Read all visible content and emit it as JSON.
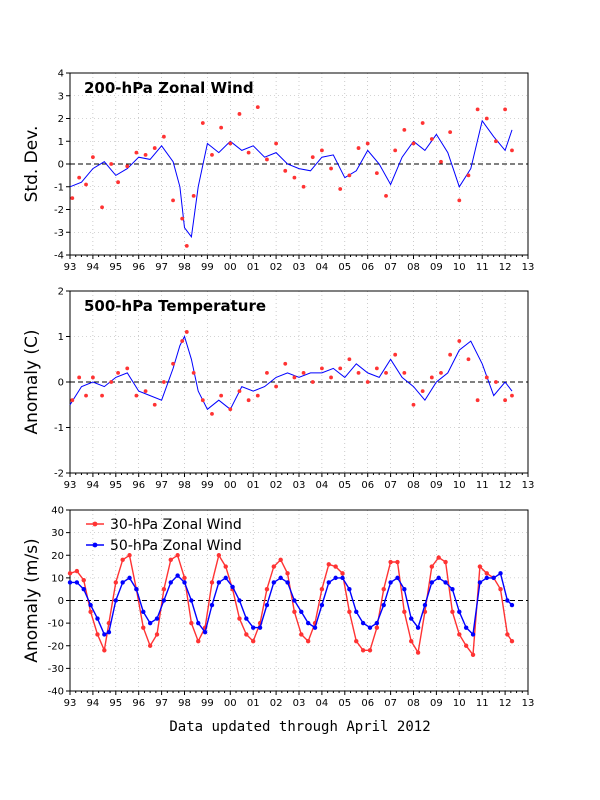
{
  "footer": "Data updated through April 2012",
  "chart_data": [
    {
      "type": "line",
      "title": "200-hPa Zonal Wind",
      "ylabel": "Std. Dev.",
      "xlabel": "",
      "x_tick_labels": [
        "93",
        "94",
        "95",
        "96",
        "97",
        "98",
        "99",
        "00",
        "01",
        "02",
        "03",
        "04",
        "05",
        "06",
        "07",
        "08",
        "09",
        "10",
        "11",
        "12",
        "13"
      ],
      "xlim": [
        1993,
        2013
      ],
      "ylim": [
        -4,
        4
      ],
      "y_ticks": [
        -4,
        -3,
        -2,
        -1,
        0,
        1,
        2,
        3,
        4
      ],
      "grid": true,
      "zero_line": true,
      "series": [
        {
          "color": "#0000ff",
          "style": "line",
          "x": [
            1993.0,
            1993.5,
            1994.0,
            1994.5,
            1995.0,
            1995.5,
            1996.0,
            1996.5,
            1997.0,
            1997.5,
            1997.8,
            1998.0,
            1998.3,
            1998.6,
            1999.0,
            1999.5,
            2000.0,
            2000.5,
            2001.0,
            2001.5,
            2002.0,
            2002.5,
            2003.0,
            2003.5,
            2004.0,
            2004.5,
            2005.0,
            2005.5,
            2006.0,
            2006.5,
            2007.0,
            2007.5,
            2008.0,
            2008.5,
            2009.0,
            2009.5,
            2010.0,
            2010.5,
            2011.0,
            2011.5,
            2012.0,
            2012.3
          ],
          "y": [
            -1.0,
            -0.8,
            -0.2,
            0.1,
            -0.5,
            -0.2,
            0.3,
            0.2,
            0.8,
            0.1,
            -1.0,
            -2.8,
            -3.2,
            -1.0,
            0.9,
            0.5,
            1.0,
            0.6,
            0.8,
            0.3,
            0.5,
            0.0,
            -0.2,
            -0.3,
            0.3,
            0.4,
            -0.6,
            -0.3,
            0.6,
            0.0,
            -0.9,
            0.3,
            1.0,
            0.6,
            1.3,
            0.5,
            -1.0,
            -0.2,
            1.9,
            1.2,
            0.6,
            1.5
          ]
        },
        {
          "color": "#ff3333",
          "style": "points",
          "x": [
            1993.1,
            1993.4,
            1993.7,
            1994.0,
            1994.4,
            1994.8,
            1995.1,
            1995.5,
            1995.9,
            1996.3,
            1996.7,
            1997.1,
            1997.5,
            1997.9,
            1998.1,
            1998.4,
            1998.8,
            1999.2,
            1999.6,
            2000.0,
            2000.4,
            2000.8,
            2001.2,
            2001.6,
            2002.0,
            2002.4,
            2002.8,
            2003.2,
            2003.6,
            2004.0,
            2004.4,
            2004.8,
            2005.2,
            2005.6,
            2006.0,
            2006.4,
            2006.8,
            2007.2,
            2007.6,
            2008.0,
            2008.4,
            2008.8,
            2009.2,
            2009.6,
            2010.0,
            2010.4,
            2010.8,
            2011.2,
            2011.6,
            2012.0,
            2012.3
          ],
          "y": [
            -1.5,
            -0.6,
            -0.9,
            0.3,
            -1.9,
            0.0,
            -0.8,
            -0.1,
            0.5,
            0.4,
            0.7,
            1.2,
            -1.6,
            -2.4,
            -3.6,
            -1.4,
            1.8,
            0.4,
            1.6,
            0.9,
            2.2,
            0.5,
            2.5,
            0.2,
            0.9,
            -0.3,
            -0.6,
            -1.0,
            0.3,
            0.6,
            -0.2,
            -1.1,
            -0.5,
            0.7,
            0.9,
            -0.4,
            -1.4,
            0.6,
            1.5,
            0.9,
            1.8,
            1.1,
            0.1,
            1.4,
            -1.6,
            -0.5,
            2.4,
            2.0,
            1.0,
            2.4,
            0.6
          ]
        }
      ]
    },
    {
      "type": "line",
      "title": "500-hPa Temperature",
      "ylabel": "Anomaly (C)",
      "xlabel": "",
      "x_tick_labels": [
        "93",
        "94",
        "95",
        "96",
        "97",
        "98",
        "99",
        "00",
        "01",
        "02",
        "03",
        "04",
        "05",
        "06",
        "07",
        "08",
        "09",
        "10",
        "11",
        "12",
        "13"
      ],
      "xlim": [
        1993,
        2013
      ],
      "ylim": [
        -2,
        2
      ],
      "y_ticks": [
        -2,
        -1,
        0,
        1,
        2
      ],
      "grid": true,
      "zero_line": true,
      "series": [
        {
          "color": "#0000ff",
          "style": "line",
          "x": [
            1993.0,
            1993.5,
            1994.0,
            1994.5,
            1995.0,
            1995.5,
            1996.0,
            1996.5,
            1997.0,
            1997.5,
            1997.8,
            1998.0,
            1998.3,
            1998.6,
            1999.0,
            1999.5,
            2000.0,
            2000.5,
            2001.0,
            2001.5,
            2002.0,
            2002.5,
            2003.0,
            2003.5,
            2004.0,
            2004.5,
            2005.0,
            2005.5,
            2006.0,
            2006.5,
            2007.0,
            2007.5,
            2008.0,
            2008.5,
            2009.0,
            2009.5,
            2010.0,
            2010.5,
            2011.0,
            2011.5,
            2012.0,
            2012.3
          ],
          "y": [
            -0.5,
            -0.1,
            0.0,
            -0.1,
            0.1,
            0.2,
            -0.2,
            -0.3,
            -0.4,
            0.3,
            0.8,
            1.0,
            0.5,
            -0.2,
            -0.6,
            -0.4,
            -0.6,
            -0.1,
            -0.2,
            -0.1,
            0.1,
            0.2,
            0.1,
            0.2,
            0.2,
            0.3,
            0.1,
            0.4,
            0.2,
            0.1,
            0.5,
            0.1,
            -0.1,
            -0.4,
            0.0,
            0.2,
            0.7,
            0.9,
            0.4,
            -0.3,
            0.0,
            -0.2
          ]
        },
        {
          "color": "#ff3333",
          "style": "points",
          "x": [
            1993.1,
            1993.4,
            1993.7,
            1994.0,
            1994.4,
            1994.8,
            1995.1,
            1995.5,
            1995.9,
            1996.3,
            1996.7,
            1997.1,
            1997.5,
            1997.9,
            1998.1,
            1998.4,
            1998.8,
            1999.2,
            1999.6,
            2000.0,
            2000.4,
            2000.8,
            2001.2,
            2001.6,
            2002.0,
            2002.4,
            2002.8,
            2003.2,
            2003.6,
            2004.0,
            2004.4,
            2004.8,
            2005.2,
            2005.6,
            2006.0,
            2006.4,
            2006.8,
            2007.2,
            2007.6,
            2008.0,
            2008.4,
            2008.8,
            2009.2,
            2009.6,
            2010.0,
            2010.4,
            2010.8,
            2011.2,
            2011.6,
            2012.0,
            2012.3
          ],
          "y": [
            -0.4,
            0.1,
            -0.3,
            0.1,
            -0.3,
            0.0,
            0.2,
            0.3,
            -0.3,
            -0.2,
            -0.5,
            0.0,
            0.4,
            0.9,
            1.1,
            0.2,
            -0.4,
            -0.7,
            -0.3,
            -0.6,
            -0.2,
            -0.4,
            -0.3,
            0.2,
            -0.1,
            0.4,
            0.1,
            0.2,
            0.0,
            0.3,
            0.1,
            0.3,
            0.5,
            0.2,
            0.0,
            0.3,
            0.2,
            0.6,
            0.2,
            -0.5,
            -0.2,
            0.1,
            0.2,
            0.6,
            0.9,
            0.5,
            -0.4,
            0.1,
            0.0,
            -0.4,
            -0.3
          ]
        }
      ]
    },
    {
      "type": "line",
      "title": "",
      "ylabel": "Anomaly (m/s)",
      "xlabel": "",
      "x_tick_labels": [
        "93",
        "94",
        "95",
        "96",
        "97",
        "98",
        "99",
        "00",
        "01",
        "02",
        "03",
        "04",
        "05",
        "06",
        "07",
        "08",
        "09",
        "10",
        "11",
        "12",
        "13"
      ],
      "xlim": [
        1993,
        2013
      ],
      "ylim": [
        -40,
        40
      ],
      "y_ticks": [
        -40,
        -30,
        -20,
        -10,
        0,
        10,
        20,
        30,
        40
      ],
      "grid": true,
      "zero_line": true,
      "legend_position": "top-left",
      "series": [
        {
          "name": "30-hPa Zonal Wind",
          "color": "#ff3333",
          "style": "line+points",
          "x": [
            1993.0,
            1993.3,
            1993.6,
            1993.9,
            1994.2,
            1994.5,
            1994.7,
            1995.0,
            1995.3,
            1995.6,
            1995.9,
            1996.2,
            1996.5,
            1996.8,
            1997.1,
            1997.4,
            1997.7,
            1998.0,
            1998.3,
            1998.6,
            1998.9,
            1999.2,
            1999.5,
            1999.8,
            2000.1,
            2000.4,
            2000.7,
            2001.0,
            2001.3,
            2001.6,
            2001.9,
            2002.2,
            2002.5,
            2002.8,
            2003.1,
            2003.4,
            2003.7,
            2004.0,
            2004.3,
            2004.6,
            2004.9,
            2005.2,
            2005.5,
            2005.8,
            2006.1,
            2006.4,
            2006.7,
            2007.0,
            2007.3,
            2007.6,
            2007.9,
            2008.2,
            2008.5,
            2008.8,
            2009.1,
            2009.4,
            2009.7,
            2010.0,
            2010.3,
            2010.6,
            2010.9,
            2011.2,
            2011.5,
            2011.8,
            2012.1,
            2012.3
          ],
          "y": [
            12,
            13,
            9,
            -5,
            -15,
            -22,
            -10,
            8,
            18,
            20,
            5,
            -12,
            -20,
            -15,
            5,
            18,
            20,
            10,
            -10,
            -18,
            -12,
            8,
            20,
            15,
            5,
            -8,
            -15,
            -18,
            -10,
            5,
            15,
            18,
            12,
            -5,
            -15,
            -18,
            -10,
            5,
            16,
            15,
            12,
            -5,
            -18,
            -22,
            -22,
            -12,
            5,
            17,
            17,
            -5,
            -18,
            -23,
            -5,
            15,
            19,
            17,
            -5,
            -15,
            -20,
            -24,
            15,
            12,
            10,
            5,
            -15,
            -18
          ]
        },
        {
          "name": "50-hPa Zonal Wind",
          "color": "#0000ff",
          "style": "line+points",
          "x": [
            1993.0,
            1993.3,
            1993.6,
            1993.9,
            1994.2,
            1994.5,
            1994.7,
            1995.0,
            1995.3,
            1995.6,
            1995.9,
            1996.2,
            1996.5,
            1996.8,
            1997.1,
            1997.4,
            1997.7,
            1998.0,
            1998.3,
            1998.6,
            1998.9,
            1999.2,
            1999.5,
            1999.8,
            2000.1,
            2000.4,
            2000.7,
            2001.0,
            2001.3,
            2001.6,
            2001.9,
            2002.2,
            2002.5,
            2002.8,
            2003.1,
            2003.4,
            2003.7,
            2004.0,
            2004.3,
            2004.6,
            2004.9,
            2005.2,
            2005.5,
            2005.8,
            2006.1,
            2006.4,
            2006.7,
            2007.0,
            2007.3,
            2007.6,
            2007.9,
            2008.2,
            2008.5,
            2008.8,
            2009.1,
            2009.4,
            2009.7,
            2010.0,
            2010.3,
            2010.6,
            2010.9,
            2011.2,
            2011.5,
            2011.8,
            2012.1,
            2012.3
          ],
          "y": [
            8,
            8,
            5,
            -2,
            -8,
            -15,
            -14,
            0,
            8,
            10,
            5,
            -5,
            -10,
            -8,
            0,
            8,
            11,
            8,
            0,
            -10,
            -14,
            -2,
            8,
            10,
            6,
            0,
            -8,
            -12,
            -12,
            -2,
            8,
            10,
            8,
            0,
            -5,
            -10,
            -12,
            -2,
            8,
            10,
            10,
            5,
            -5,
            -10,
            -12,
            -10,
            -2,
            8,
            10,
            5,
            -8,
            -12,
            -2,
            8,
            10,
            8,
            5,
            -5,
            -12,
            -15,
            8,
            10,
            10,
            12,
            0,
            -2
          ]
        }
      ]
    }
  ]
}
